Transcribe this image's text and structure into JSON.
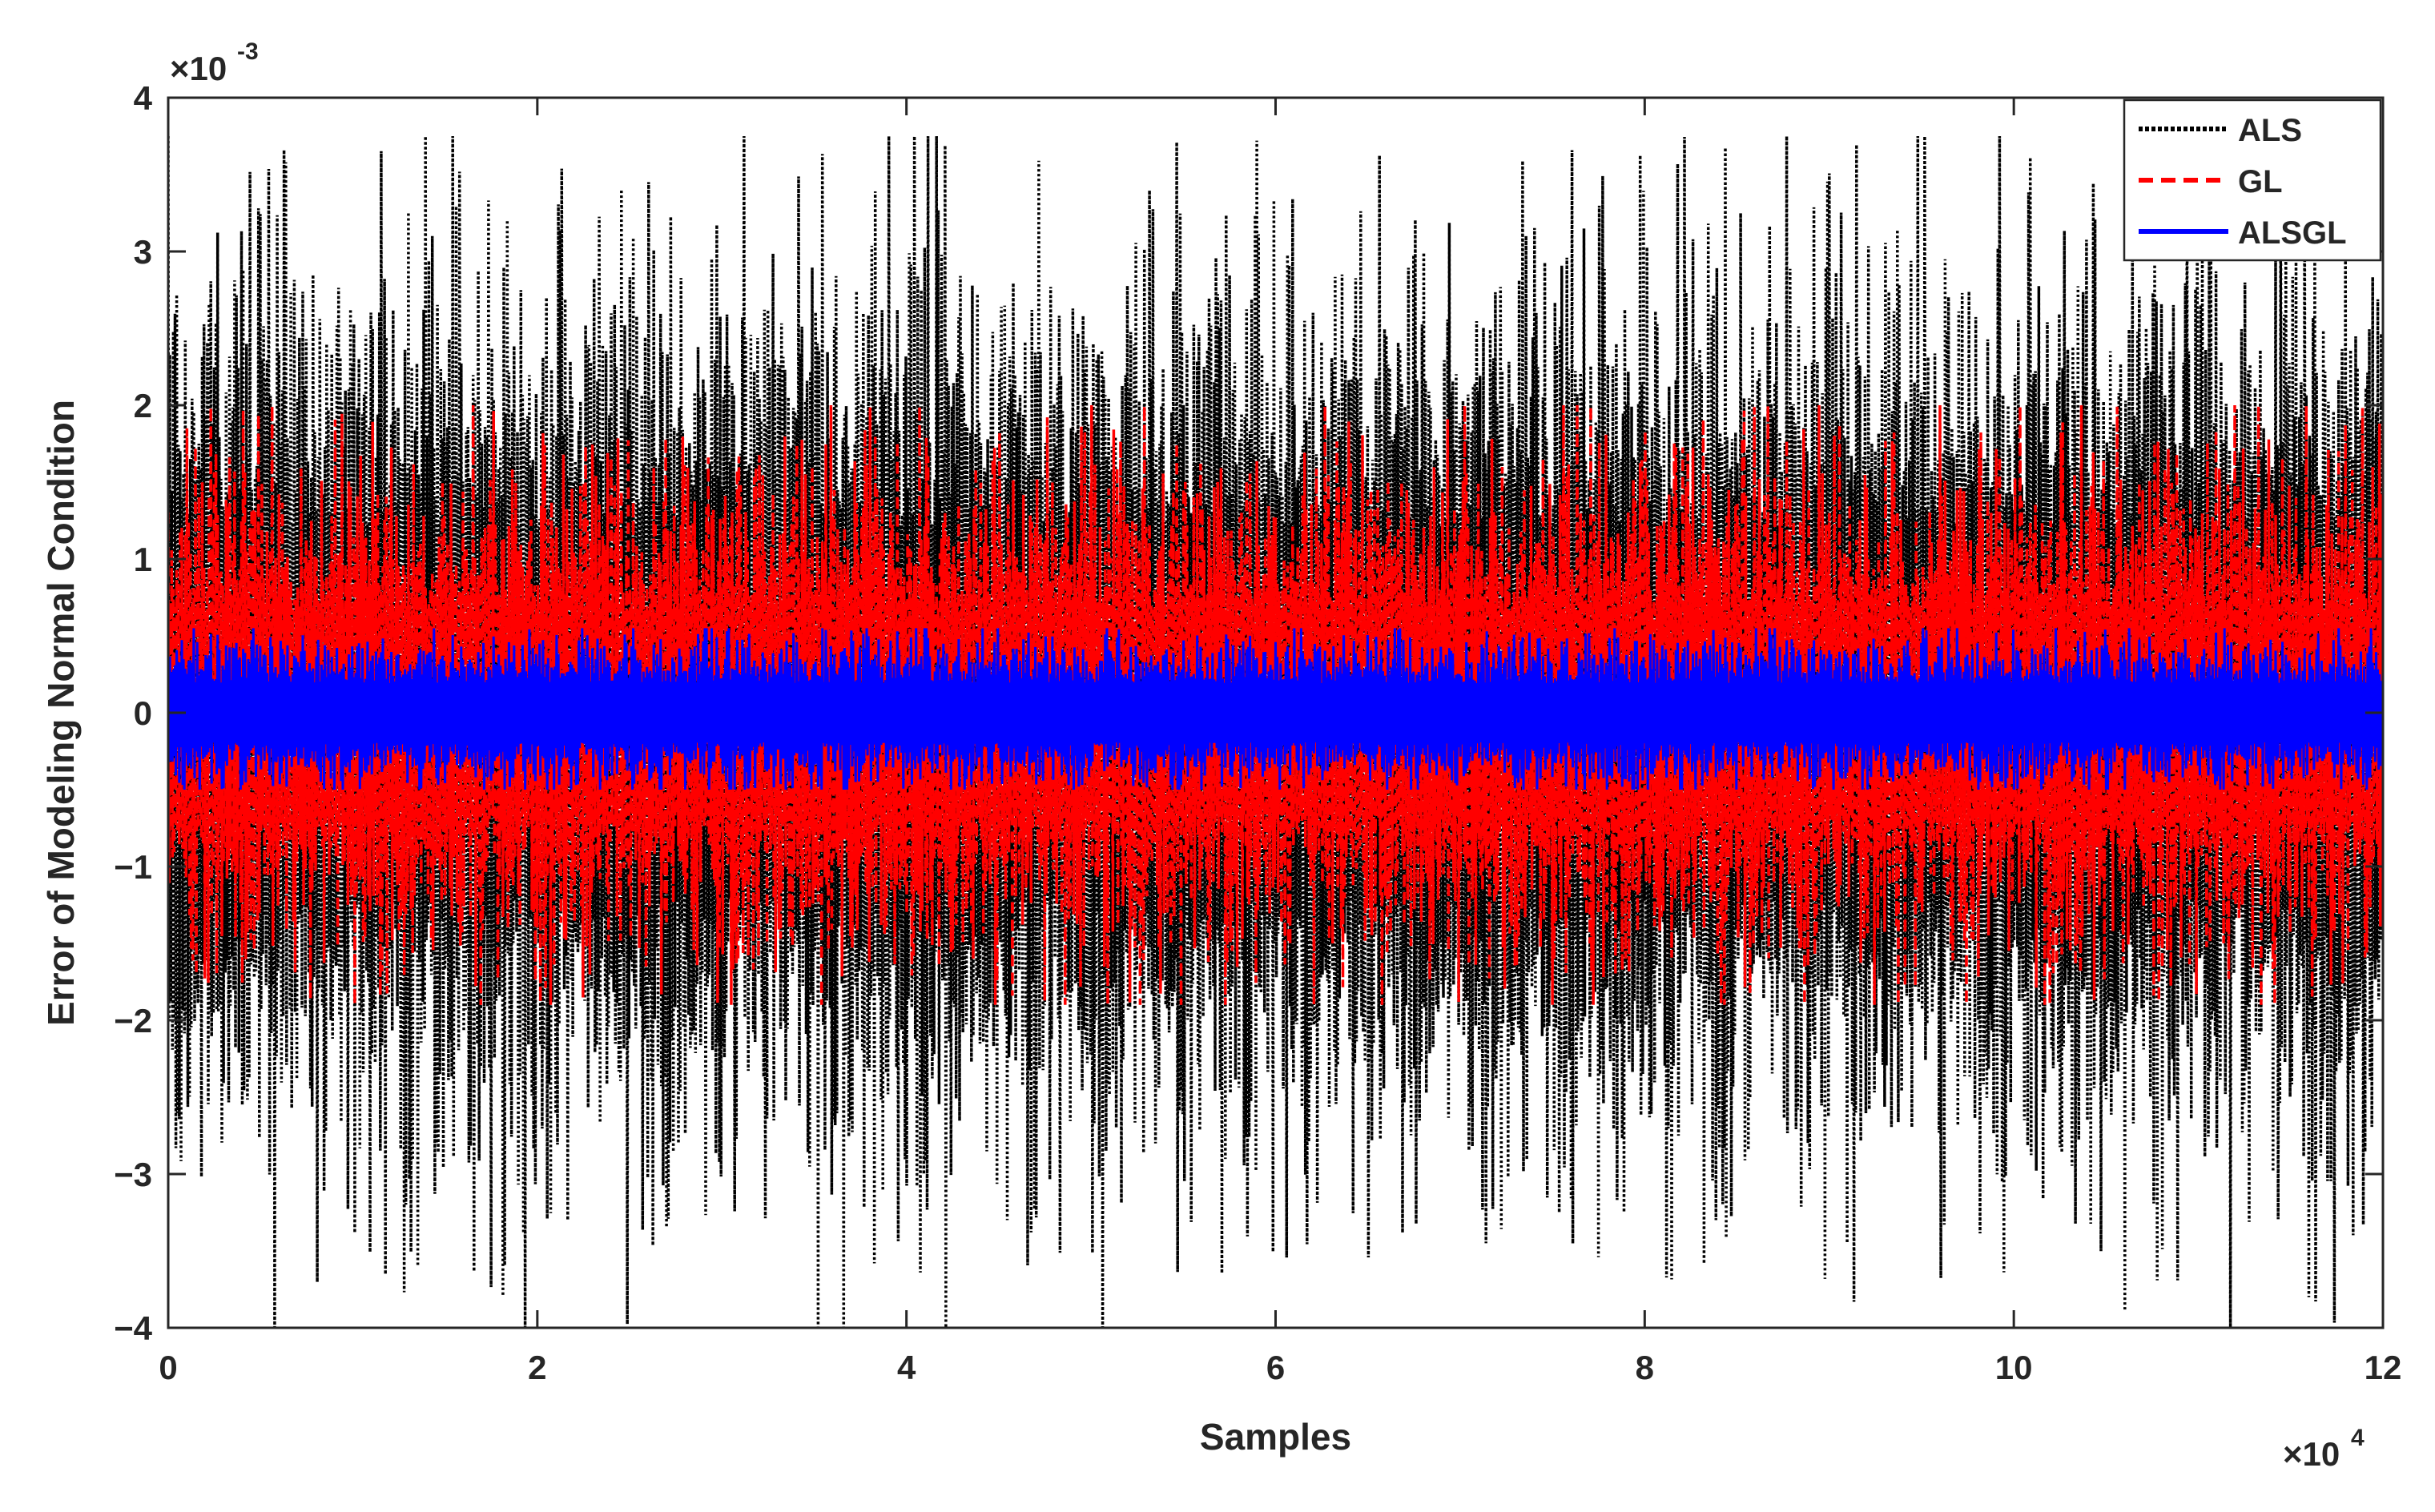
{
  "chart_data": {
    "type": "line",
    "title": "",
    "xlabel": "Samples",
    "ylabel": "Error of Modeling Normal Condition",
    "x_multiplier_label": "×10",
    "x_multiplier_exp": "4",
    "y_multiplier_label": "×10",
    "y_multiplier_exp": "-3",
    "xlim": [
      0,
      12
    ],
    "ylim": [
      -4,
      4
    ],
    "xticks": [
      0,
      2,
      4,
      6,
      8,
      10,
      12
    ],
    "xtick_labels": [
      "0",
      "2",
      "4",
      "6",
      "8",
      "10",
      "12"
    ],
    "yticks": [
      -4,
      -3,
      -2,
      -1,
      0,
      1,
      2,
      3,
      4
    ],
    "ytick_labels": [
      "−4",
      "−3",
      "−2",
      "−1",
      "0",
      "1",
      "2",
      "3",
      "4"
    ],
    "grid": false,
    "legend_position": "top-right",
    "x_range_samples": [
      0,
      120000
    ],
    "series": [
      {
        "name": "ALS",
        "color": "#000000",
        "style": "dotted",
        "description_of_envelope": "dense noise, typical amplitude about ±2.2, extreme peaks near +3.75 and −4.0",
        "typical_amplitude": 2.2,
        "peak_max": 3.75,
        "peak_min": -4.0
      },
      {
        "name": "GL",
        "color": "#ff0000",
        "style": "dashed",
        "description_of_envelope": "dense noise, typical amplitude about ±1.2, peaks near +2.0 and −1.9",
        "typical_amplitude": 1.2,
        "peak_max": 2.0,
        "peak_min": -1.9
      },
      {
        "name": "ALSGL",
        "color": "#0000ff",
        "style": "solid",
        "description_of_envelope": "dense noise, typical amplitude about ±0.35, peaks near +0.55 and −0.5",
        "typical_amplitude": 0.35,
        "peak_max": 0.55,
        "peak_min": -0.5
      }
    ]
  }
}
